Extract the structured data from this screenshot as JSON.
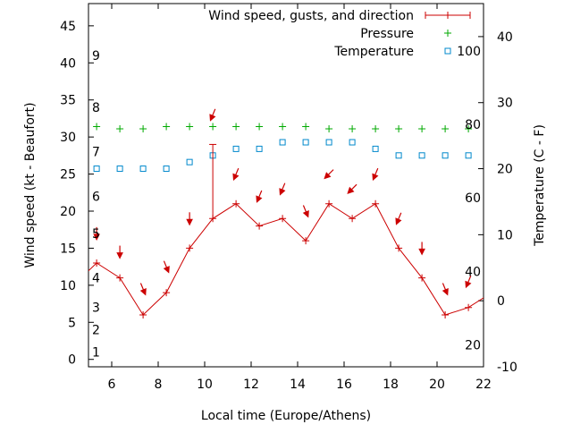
{
  "chart_data": {
    "type": "line",
    "xlabel": "Local time (Europe/Athens)",
    "ylabel_left": "Wind speed (kt - Beaufort)",
    "ylabel_right": "Temperature (C - F)",
    "xlim": [
      5,
      22
    ],
    "ylim": [
      -1,
      48
    ],
    "y2lim": [
      -10,
      45
    ],
    "x_ticks": [
      6,
      8,
      10,
      12,
      14,
      16,
      18,
      20,
      22
    ],
    "y_ticks": [
      0,
      5,
      10,
      15,
      20,
      25,
      30,
      35,
      40,
      45
    ],
    "y2_ticks": [
      -10,
      0,
      10,
      20,
      30,
      40
    ],
    "beaufort_labels": [
      {
        "text": "1",
        "wind": 1
      },
      {
        "text": "2",
        "wind": 4
      },
      {
        "text": "3",
        "wind": 7
      },
      {
        "text": "4",
        "wind": 11
      },
      {
        "text": "5",
        "wind": 17
      },
      {
        "text": "6",
        "wind": 22
      },
      {
        "text": "7",
        "wind": 28
      },
      {
        "text": "8",
        "wind": 34
      },
      {
        "text": "9",
        "wind": 41
      }
    ],
    "fahrenheit_labels": [
      {
        "text": "20",
        "temp": -6.7
      },
      {
        "text": "40",
        "temp": 4.4
      },
      {
        "text": "60",
        "temp": 15.6
      },
      {
        "text": "80",
        "temp": 26.7
      },
      {
        "text": "100",
        "temp": 37.8
      }
    ],
    "legend": [
      {
        "label": "Wind speed, gusts, and direction",
        "color": "#cc0000"
      },
      {
        "label": "Pressure",
        "color": "#00aa00"
      },
      {
        "label": "Temperature",
        "color": "#0088cc"
      }
    ],
    "wind": {
      "x": [
        4.35,
        5.35,
        6.35,
        7.35,
        8.35,
        9.35,
        10.35,
        11.35,
        12.35,
        13.35,
        14.35,
        15.35,
        16.35,
        17.35,
        18.35,
        19.35,
        20.35,
        21.35,
        22.35
      ],
      "y": [
        10,
        13,
        11,
        6,
        9,
        15,
        19,
        21,
        18,
        19,
        16,
        21,
        19,
        21,
        15,
        11,
        6,
        7,
        9
      ]
    },
    "gust": {
      "x": 10.35,
      "y": 29
    },
    "direction_arrows": [
      {
        "x": 5.35,
        "wind": 17,
        "dir": "S"
      },
      {
        "x": 6.35,
        "wind": 14.5,
        "dir": "S"
      },
      {
        "x": 7.35,
        "wind": 9.5,
        "dir": "SSE"
      },
      {
        "x": 8.35,
        "wind": 12.5,
        "dir": "SSE"
      },
      {
        "x": 9.35,
        "wind": 19,
        "dir": "S"
      },
      {
        "x": 10.35,
        "wind": 33,
        "dir": "SSW"
      },
      {
        "x": 11.35,
        "wind": 25,
        "dir": "SSW"
      },
      {
        "x": 12.35,
        "wind": 22,
        "dir": "SSW"
      },
      {
        "x": 13.35,
        "wind": 23,
        "dir": "SSW"
      },
      {
        "x": 14.35,
        "wind": 20,
        "dir": "SSE"
      },
      {
        "x": 15.35,
        "wind": 25,
        "dir": "SW"
      },
      {
        "x": 16.35,
        "wind": 23,
        "dir": "SW"
      },
      {
        "x": 17.35,
        "wind": 25,
        "dir": "SSW"
      },
      {
        "x": 18.35,
        "wind": 19,
        "dir": "SSW"
      },
      {
        "x": 19.35,
        "wind": 15,
        "dir": "S"
      },
      {
        "x": 20.35,
        "wind": 9.5,
        "dir": "SSE"
      },
      {
        "x": 21.35,
        "wind": 10.5,
        "dir": "SSW"
      }
    ],
    "pressure": {
      "x": [
        5.35,
        6.35,
        7.35,
        8.35,
        9.35,
        10.35,
        11.35,
        12.35,
        13.35,
        14.35,
        15.35,
        16.35,
        17.35,
        18.35,
        19.35,
        20.35,
        21.35
      ],
      "wind_level": [
        31.4,
        31.1,
        31.1,
        31.4,
        31.4,
        31.4,
        31.4,
        31.4,
        31.4,
        31.4,
        31.1,
        31.1,
        31.1,
        31.1,
        31.1,
        31.1,
        31.1
      ]
    },
    "temperature": {
      "x": [
        5.35,
        6.35,
        7.35,
        8.35,
        9.35,
        10.35,
        11.35,
        12.35,
        13.35,
        14.35,
        15.35,
        16.35,
        17.35,
        18.35,
        19.35,
        20.35,
        21.35
      ],
      "y": [
        20,
        20,
        20,
        20,
        21,
        22,
        23,
        23,
        24,
        24,
        24,
        24,
        23,
        22,
        22,
        22,
        22
      ]
    }
  }
}
